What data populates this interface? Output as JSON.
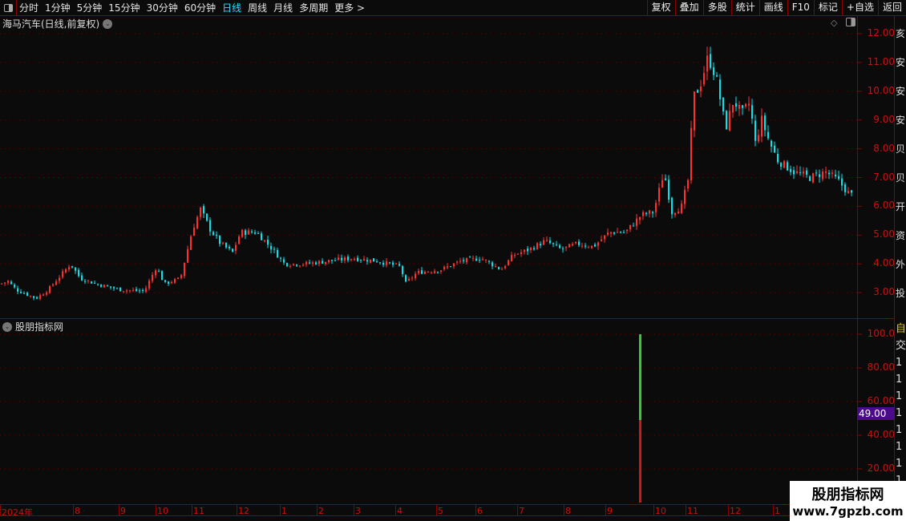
{
  "toolbar": {
    "periods": [
      "分时",
      "1分钟",
      "5分钟",
      "15分钟",
      "30分钟",
      "60分钟",
      "日线",
      "周线",
      "月线",
      "多周期",
      "更多 >"
    ],
    "active": "日线",
    "actions": [
      "复权",
      "叠加",
      "多股",
      "统计",
      "画线",
      "F10",
      "标记",
      "+自选",
      "返回"
    ]
  },
  "main_panel": {
    "title": "海马汽车(日线,前复权)",
    "y_ticks": [
      "12.00",
      "11.00",
      "10.00",
      "9.00",
      "8.00",
      "7.00",
      "6.00",
      "5.00",
      "4.00",
      "3.00"
    ]
  },
  "sub_panel": {
    "title": "股朋指标网",
    "y_ticks": [
      "100.0",
      "80.00",
      "60.00",
      "40.00",
      "20.00"
    ],
    "cursor_value": "49.00"
  },
  "x_axis": {
    "labels": [
      "2024年",
      "8",
      "9",
      "10",
      "11",
      "12",
      "1",
      "2",
      "3",
      "4",
      "5",
      "6",
      "7",
      "8",
      "9",
      "10",
      "11",
      "12",
      "1"
    ]
  },
  "watermark": {
    "name": "股朋指标网",
    "url": "www.7gpzb.com"
  },
  "colors": {
    "up": "#ff3030",
    "down": "#00e5ee",
    "grid": "#6b0000",
    "axis": "#8b0000",
    "indicator_high": "#33cc33",
    "indicator_low": "#cc1a1a",
    "cursor_bg": "#4b0a8c"
  },
  "chart_data": [
    {
      "type": "candlestick",
      "title": "海马汽车(日线,前复权)",
      "ylim": [
        2.5,
        12.1
      ],
      "x_labels": [
        "2024年",
        "8",
        "9",
        "10",
        "11",
        "12",
        "1",
        "2",
        "3",
        "4",
        "5",
        "6",
        "7",
        "8",
        "9",
        "10",
        "11",
        "12",
        "1"
      ],
      "close_path": [
        [
          0,
          3.3
        ],
        [
          10,
          3.4
        ],
        [
          20,
          3.1
        ],
        [
          45,
          2.8
        ],
        [
          60,
          3.1
        ],
        [
          88,
          4.0
        ],
        [
          100,
          3.5
        ],
        [
          120,
          3.3
        ],
        [
          150,
          3.1
        ],
        [
          180,
          3.05
        ],
        [
          195,
          3.9
        ],
        [
          205,
          3.3
        ],
        [
          225,
          3.5
        ],
        [
          240,
          5.2
        ],
        [
          250,
          5.9
        ],
        [
          262,
          5.2
        ],
        [
          275,
          4.7
        ],
        [
          290,
          4.4
        ],
        [
          300,
          5.1
        ],
        [
          320,
          5.1
        ],
        [
          340,
          4.5
        ],
        [
          355,
          4.0
        ],
        [
          380,
          4.0
        ],
        [
          410,
          4.1
        ],
        [
          440,
          4.2
        ],
        [
          470,
          4.1
        ],
        [
          500,
          3.9
        ],
        [
          505,
          3.3
        ],
        [
          520,
          3.7
        ],
        [
          550,
          3.8
        ],
        [
          575,
          4.1
        ],
        [
          600,
          4.2
        ],
        [
          625,
          3.8
        ],
        [
          640,
          4.3
        ],
        [
          660,
          4.5
        ],
        [
          680,
          4.8
        ],
        [
          700,
          4.5
        ],
        [
          720,
          4.7
        ],
        [
          740,
          4.6
        ],
        [
          760,
          5.1
        ],
        [
          780,
          5.1
        ],
        [
          800,
          5.7
        ],
        [
          815,
          5.8
        ],
        [
          828,
          7.2
        ],
        [
          838,
          5.8
        ],
        [
          850,
          6.0
        ],
        [
          858,
          6.9
        ],
        [
          865,
          9.8
        ],
        [
          873,
          10.2
        ],
        [
          883,
          11.2
        ],
        [
          893,
          10.5
        ],
        [
          905,
          8.7
        ],
        [
          915,
          9.7
        ],
        [
          925,
          9.2
        ],
        [
          935,
          9.6
        ],
        [
          942,
          8.2
        ],
        [
          950,
          9.0
        ],
        [
          960,
          8.2
        ],
        [
          970,
          7.6
        ],
        [
          990,
          7.2
        ],
        [
          1010,
          7.0
        ],
        [
          1030,
          7.2
        ],
        [
          1045,
          6.9
        ],
        [
          1060,
          6.4
        ]
      ]
    },
    {
      "type": "bar",
      "title": "股朋指标网",
      "ylim": [
        0,
        100
      ],
      "signal": {
        "low_segment": [
          0,
          49
        ],
        "high_segment": [
          49,
          100
        ]
      }
    }
  ]
}
